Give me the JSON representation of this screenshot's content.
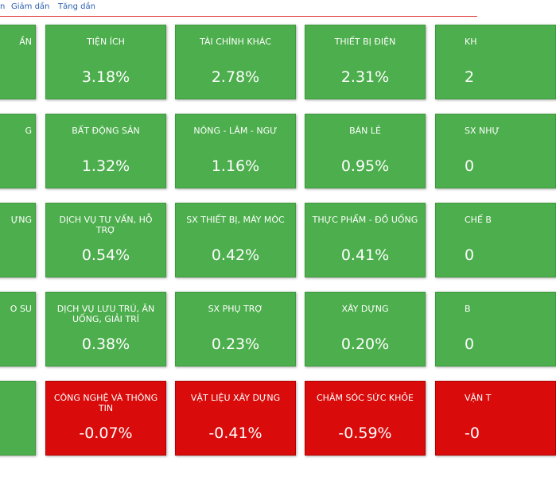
{
  "toolbar": {
    "links": [
      "n",
      "Giảm dần",
      "Tăng dần"
    ]
  },
  "left": [
    "ẦN",
    "G",
    "ỰNG",
    "O SU"
  ],
  "grid": [
    [
      {
        "name": "TIỆN ÍCH",
        "value": "3.18%"
      },
      {
        "name": "TÀI CHÍNH KHÁC",
        "value": "2.78%"
      },
      {
        "name": "THIẾT BỊ ĐIỆN",
        "value": "2.31%"
      }
    ],
    [
      {
        "name": "BẤT ĐỘNG SẢN",
        "value": "1.32%"
      },
      {
        "name": "NÔNG - LÂM - NGƯ",
        "value": "1.16%"
      },
      {
        "name": "BÁN LẺ",
        "value": "0.95%"
      }
    ],
    [
      {
        "name": "DỊCH VỤ TƯ VẤN, HỖ TRỢ",
        "value": "0.54%"
      },
      {
        "name": "SX THIẾT BỊ, MÁY MÓC",
        "value": "0.42%"
      },
      {
        "name": "THỰC PHẨM - ĐỒ UỐNG",
        "value": "0.41%"
      }
    ],
    [
      {
        "name": "DỊCH VỤ LƯU TRÚ, ĂN UỐNG, GIẢI TRÍ",
        "value": "0.38%"
      },
      {
        "name": "SX PHỤ TRỢ",
        "value": "0.23%"
      },
      {
        "name": "XÂY DỰNG",
        "value": "0.20%"
      }
    ],
    [
      {
        "name": "CÔNG NGHỆ VÀ THÔNG TIN",
        "value": "-0.07%"
      },
      {
        "name": "VẬT LIỆU XÂY DỰNG",
        "value": "-0.41%"
      },
      {
        "name": "CHĂM SÓC SỨC KHỎE",
        "value": "-0.59%"
      }
    ]
  ],
  "right": [
    {
      "name": "KH",
      "value": "2"
    },
    {
      "name": "SX NHỰ",
      "value": "0"
    },
    {
      "name": "CHẾ B",
      "value": "0"
    },
    {
      "name": "B",
      "value": "0"
    },
    {
      "name": "VẬN T",
      "value": "-0"
    }
  ]
}
